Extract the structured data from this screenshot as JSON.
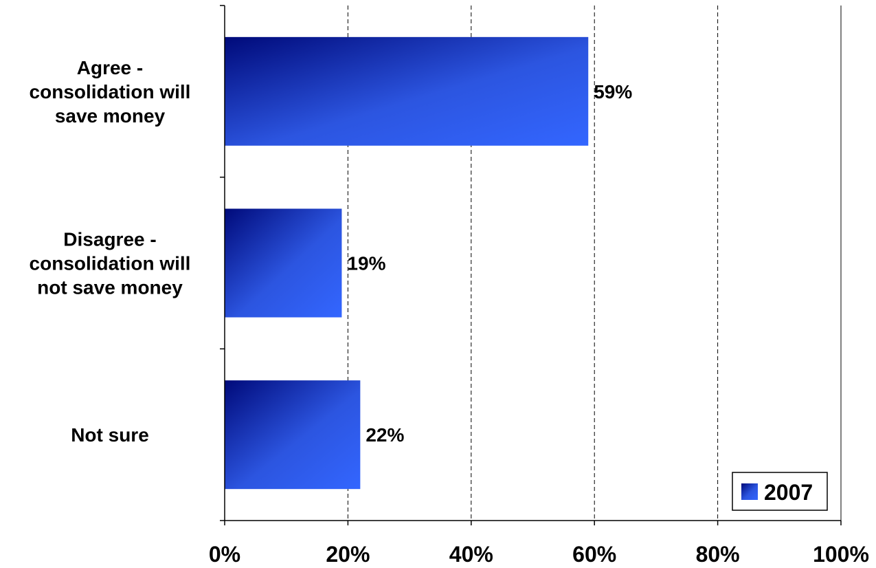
{
  "chart_data": {
    "type": "bar",
    "orientation": "horizontal",
    "categories": [
      [
        "Agree -",
        "consolidation will",
        "save money"
      ],
      [
        "Disagree -",
        "consolidation will",
        "not save money"
      ],
      [
        "Not sure"
      ]
    ],
    "series": [
      {
        "name": "2007",
        "values": [
          59,
          19,
          22
        ]
      }
    ],
    "data_labels": [
      "59%",
      "19%",
      "22%"
    ],
    "x_ticks": [
      "0%",
      "20%",
      "40%",
      "60%",
      "80%",
      "100%"
    ],
    "xlim": [
      0,
      100
    ],
    "grid": "vertical dashed",
    "legend_position": "bottom-right",
    "colors": {
      "bar_dark": "#000a7a",
      "bar_light": "#3366ff"
    }
  }
}
